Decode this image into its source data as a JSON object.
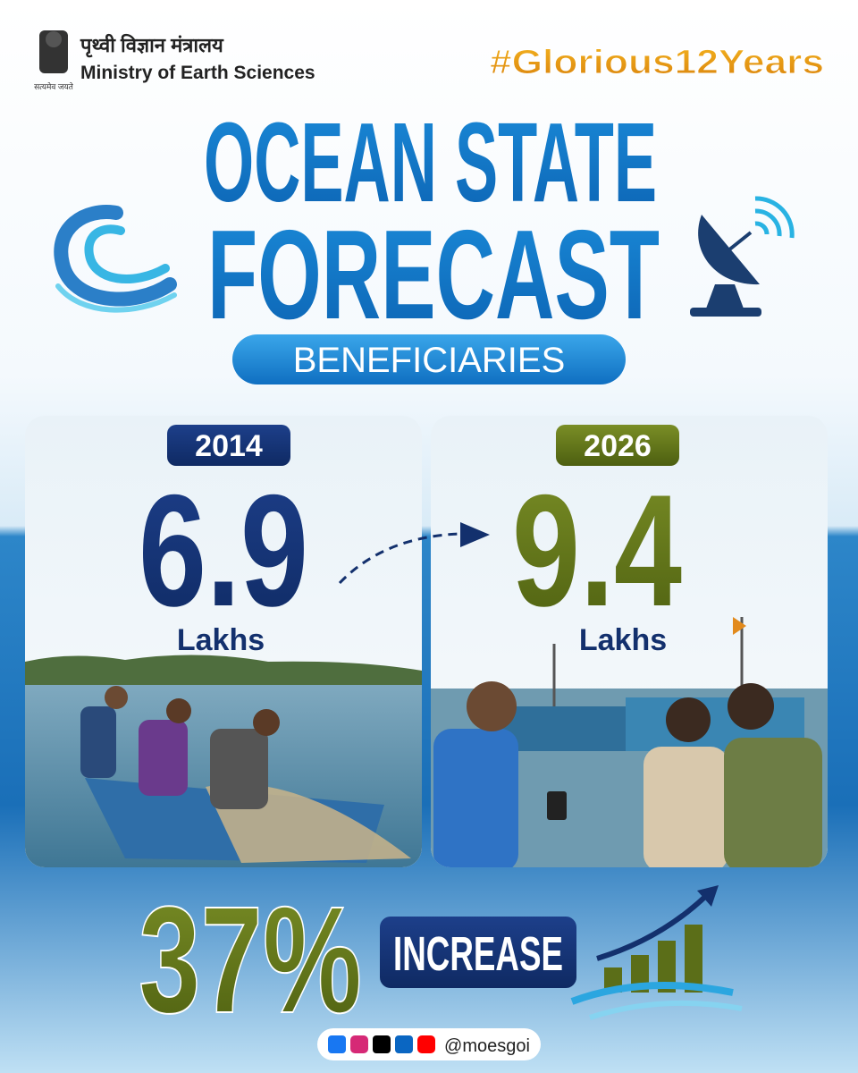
{
  "header": {
    "hindi": "पृथ्वी विज्ञान मंत्रालय",
    "ministry": "Ministry of Earth Sciences",
    "motto": "सत्यमेव जयते",
    "hashtag": "#Glorious12Years"
  },
  "title": {
    "line1": "OCEAN STATE",
    "line2": "FORECAST",
    "subtitle": "BENEFICIARIES"
  },
  "panels": [
    {
      "year": "2014",
      "value": "6.9",
      "unit": "Lakhs"
    },
    {
      "year": "2026",
      "value": "9.4",
      "unit": "Lakhs"
    }
  ],
  "increase": {
    "percent": "37%",
    "label": "INCREASE"
  },
  "footer": {
    "handle": "@moesgoi"
  }
}
